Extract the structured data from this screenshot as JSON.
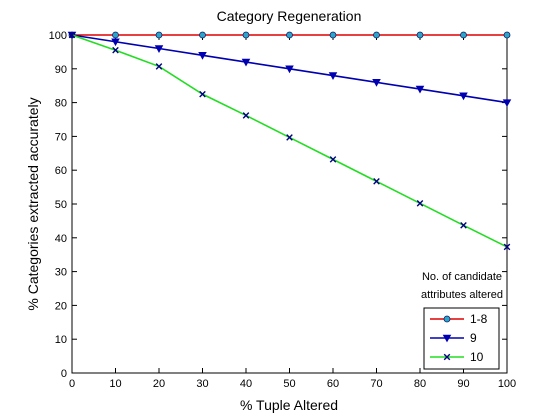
{
  "chart_data": {
    "type": "line",
    "title": "Category Regeneration",
    "xlabel": "% Tuple Altered",
    "ylabel": "% Categories extracted accurately",
    "xlim": [
      0,
      100
    ],
    "ylim": [
      0,
      100
    ],
    "x_ticks": [
      0,
      10,
      20,
      30,
      40,
      50,
      60,
      70,
      80,
      90,
      100
    ],
    "y_ticks": [
      0,
      10,
      20,
      30,
      40,
      50,
      60,
      70,
      80,
      90,
      100
    ],
    "grid": false,
    "legend_placement": "bottom-right",
    "legend_title": [
      "No. of candidate",
      "attributes altered"
    ],
    "series": [
      {
        "name": "1-8",
        "color": "#dd0000",
        "marker": "circle",
        "marker_color": "#2aa7c8",
        "x": [
          0,
          10,
          20,
          30,
          40,
          50,
          60,
          70,
          80,
          90,
          100
        ],
        "values": [
          100,
          100,
          100,
          100,
          100,
          100,
          100,
          100,
          100,
          100,
          100
        ]
      },
      {
        "name": "9",
        "color": "#0000b0",
        "marker": "triangle-down",
        "marker_color": "#0000b0",
        "x": [
          0,
          10,
          20,
          30,
          40,
          50,
          60,
          70,
          80,
          90,
          100
        ],
        "values": [
          100,
          98,
          96,
          94,
          92,
          90,
          88,
          86,
          84,
          82,
          80
        ]
      },
      {
        "name": "10",
        "color": "#22dd22",
        "marker": "x",
        "marker_color": "#000080",
        "x": [
          0,
          10,
          20,
          30,
          40,
          50,
          60,
          70,
          80,
          90,
          100
        ],
        "values": [
          100,
          95.5,
          90.7,
          82.5,
          76.2,
          69.7,
          63.2,
          56.7,
          50.2,
          43.7,
          37.3
        ]
      }
    ]
  }
}
